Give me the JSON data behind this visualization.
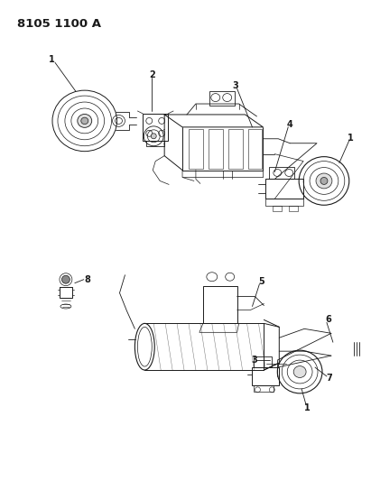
{
  "title": "8105 1100 A",
  "bg_color": "#ffffff",
  "line_color": "#1a1a1a",
  "lw": 0.7,
  "fig_w": 4.11,
  "fig_h": 5.33,
  "dpi": 100,
  "label_fontsize": 7.0,
  "title_fontsize": 9.5
}
